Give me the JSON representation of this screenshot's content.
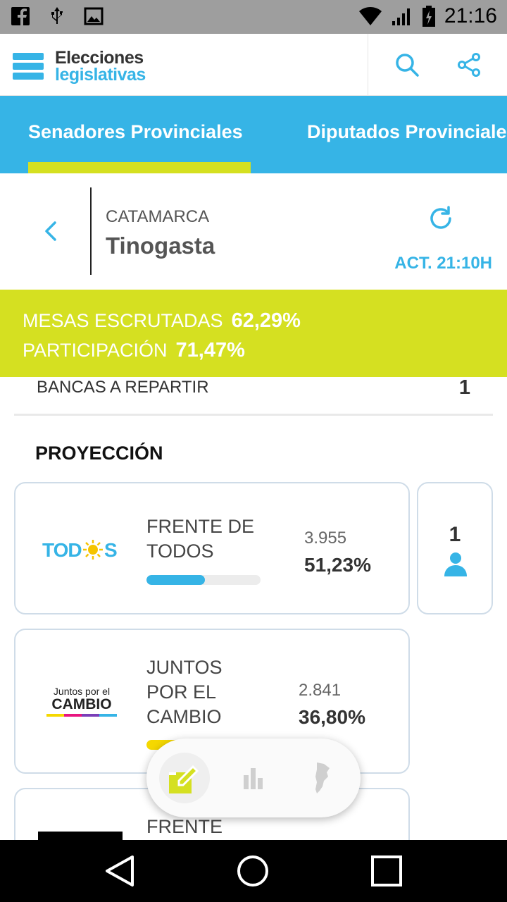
{
  "status_bar": {
    "time": "21:16",
    "left_icons": [
      "facebook-icon",
      "usb-icon",
      "image-icon"
    ],
    "right_icons": [
      "wifi-icon",
      "signal-icon",
      "battery-icon"
    ]
  },
  "app_bar": {
    "logo_line1": "Elecciones",
    "logo_line2": "legislativas",
    "actions": [
      "search-icon",
      "share-icon"
    ]
  },
  "tabs": [
    {
      "label": "Senadores Provinciales",
      "active": true
    },
    {
      "label": "Diputados Provinciales",
      "active": false
    }
  ],
  "location": {
    "province": "CATAMARCA",
    "city": "Tinogasta",
    "updated": "ACT. 21:10H"
  },
  "stats": {
    "mesas_label": "MESAS ESCRUTADAS",
    "mesas_value": "62,29%",
    "participacion_label": "PARTICIPACIÓN",
    "participacion_value": "71,47%"
  },
  "seats": {
    "label": "BANCAS A REPARTIR",
    "value": "1"
  },
  "section_title": "PROYECCIÓN",
  "results": [
    {
      "logo_text": "TODOS",
      "name": "FRENTE DE\nTODOS",
      "votes": "3.955",
      "pct": "51,23%",
      "bar_fraction": 0.5123,
      "bar_color": "#36b4e6",
      "seats_won": "1"
    },
    {
      "logo_line1": "Juntos por el",
      "logo_line2": "CAMBIO",
      "name": "JUNTOS\nPOR EL\nCAMBIO",
      "votes": "2.841",
      "pct": "36,80%",
      "bar_fraction": 0.368,
      "bar_color": "#f5d800"
    },
    {
      "name": "FRENTE"
    }
  ],
  "bottom_menu": [
    "vote-icon",
    "bar-chart-icon",
    "argentina-map-icon"
  ],
  "nav_bar": [
    "back-triangle-icon",
    "home-circle-icon",
    "recents-square-icon"
  ],
  "colors": {
    "accent_blue": "#36b4e6",
    "lime": "#d5e021",
    "yellow": "#f5d800"
  }
}
